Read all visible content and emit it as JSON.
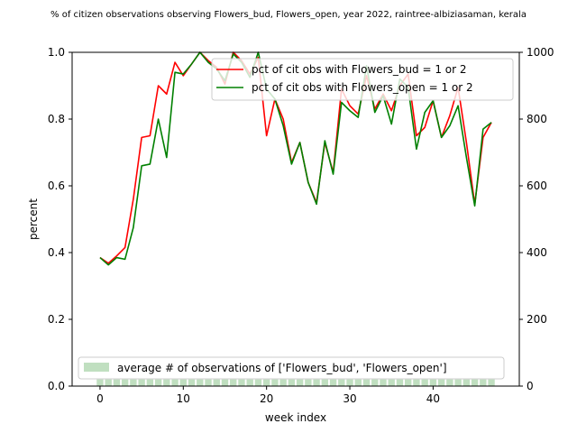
{
  "chart_data": {
    "type": "line",
    "title": "% of citizen observations observing Flowers_bud, Flowers_open, year 2022, raintree-albiziasaman, kerala",
    "xlabel": "week index",
    "ylabel": "percent",
    "xlim": [
      -3.35,
      50.35
    ],
    "ylim": [
      0,
      1
    ],
    "y2lim": [
      0,
      1000
    ],
    "x_ticks": [
      0,
      10,
      20,
      30,
      40
    ],
    "y_ticks": [
      0.0,
      0.2,
      0.4,
      0.6,
      0.8,
      1.0
    ],
    "y_tick_labels": [
      "0.0",
      "0.2",
      "0.4",
      "0.6",
      "0.8",
      "1.0"
    ],
    "y2_ticks": [
      0,
      200,
      400,
      600,
      800,
      1000
    ],
    "legend_position": "top-right",
    "legend2_position": "lower-left",
    "weeks": [
      0,
      1,
      2,
      3,
      4,
      5,
      6,
      7,
      8,
      9,
      10,
      11,
      12,
      13,
      14,
      15,
      16,
      17,
      18,
      19,
      20,
      21,
      22,
      23,
      24,
      25,
      26,
      27,
      28,
      29,
      30,
      31,
      32,
      33,
      34,
      35,
      36,
      37,
      38,
      39,
      40,
      41,
      42,
      43,
      44,
      45,
      46,
      47
    ],
    "series": [
      {
        "name": "pct of cit obs with Flowers_bud = 1 or 2",
        "color": "#ff0000",
        "values": [
          0.385,
          0.368,
          0.39,
          0.415,
          0.56,
          0.745,
          0.75,
          0.9,
          0.875,
          0.97,
          0.93,
          0.965,
          1.0,
          0.975,
          0.955,
          0.905,
          1.0,
          0.975,
          0.935,
          0.985,
          0.75,
          0.86,
          0.8,
          0.67,
          0.73,
          0.61,
          0.55,
          0.73,
          0.64,
          0.89,
          0.84,
          0.815,
          0.93,
          0.83,
          0.875,
          0.825,
          0.9,
          0.935,
          0.75,
          0.775,
          0.855,
          0.745,
          0.81,
          0.895,
          0.73,
          0.545,
          0.745,
          0.79
        ]
      },
      {
        "name": "pct of cit obs with Flowers_open = 1 or 2",
        "color": "#008000",
        "values": [
          0.385,
          0.363,
          0.385,
          0.38,
          0.475,
          0.66,
          0.665,
          0.8,
          0.685,
          0.94,
          0.935,
          0.965,
          1.0,
          0.97,
          0.95,
          0.915,
          0.995,
          0.97,
          0.925,
          1.0,
          0.89,
          0.86,
          0.78,
          0.665,
          0.73,
          0.61,
          0.545,
          0.735,
          0.635,
          0.85,
          0.825,
          0.805,
          0.96,
          0.82,
          0.87,
          0.785,
          0.92,
          0.895,
          0.71,
          0.82,
          0.855,
          0.745,
          0.78,
          0.84,
          0.685,
          0.54,
          0.77,
          0.79
        ]
      },
      {
        "name": "average # of observations of ['Flowers_bud', 'Flowers_open']",
        "color": "#c0dfc0",
        "type": "bar",
        "axis": "right",
        "values": [
          20,
          20,
          20,
          20,
          20,
          20,
          20,
          20,
          20,
          20,
          20,
          20,
          20,
          20,
          20,
          20,
          20,
          20,
          20,
          20,
          20,
          20,
          20,
          20,
          20,
          20,
          20,
          20,
          20,
          20,
          20,
          20,
          20,
          20,
          20,
          20,
          20,
          20,
          20,
          20,
          20,
          20,
          20,
          20,
          20,
          20,
          20,
          20
        ]
      }
    ]
  }
}
